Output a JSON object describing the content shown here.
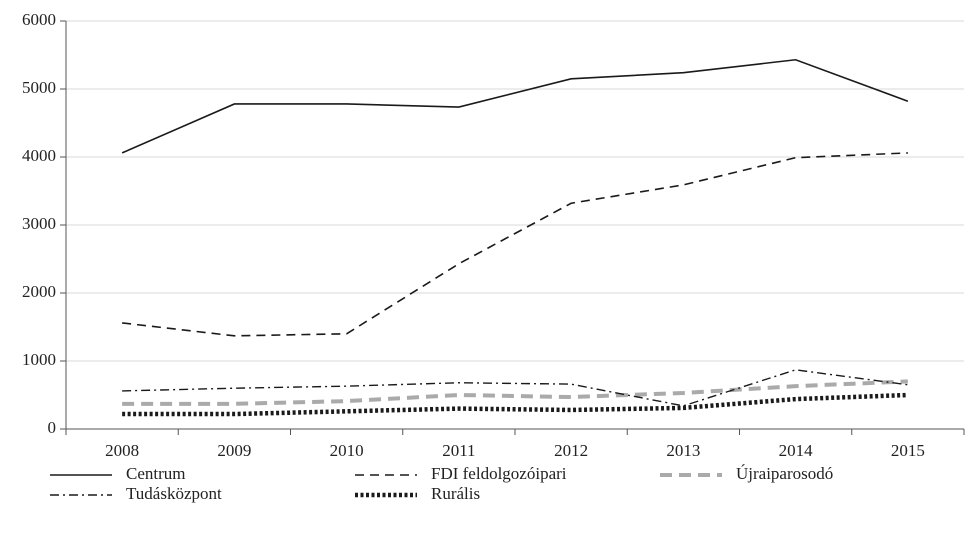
{
  "chart_data": {
    "type": "line",
    "categories": [
      "2008",
      "2009",
      "2010",
      "2011",
      "2012",
      "2013",
      "2014",
      "2015"
    ],
    "series": [
      {
        "name": "Centrum",
        "color": "#1a1a1a",
        "line_style": "solid",
        "values": [
          4060,
          4780,
          4780,
          4735,
          5150,
          5240,
          5430,
          4820
        ]
      },
      {
        "name": "FDI feldolgozóipari",
        "color": "#1a1a1a",
        "line_style": "dashed",
        "values": [
          1560,
          1370,
          1400,
          2430,
          3320,
          3590,
          3990,
          4060
        ]
      },
      {
        "name": "Újraiparosodó",
        "color": "#aaaaaa",
        "line_style": "thick-dashed",
        "values": [
          370,
          370,
          410,
          500,
          470,
          530,
          630,
          700
        ]
      },
      {
        "name": "Tudásközpont",
        "color": "#1a1a1a",
        "line_style": "dashdot",
        "values": [
          560,
          600,
          630,
          680,
          660,
          340,
          870,
          650
        ]
      },
      {
        "name": "Rurális",
        "color": "#1a1a1a",
        "line_style": "dotted",
        "values": [
          220,
          220,
          260,
          300,
          280,
          310,
          440,
          500
        ]
      }
    ],
    "ylim": [
      0,
      6000
    ],
    "yticks": [
      0,
      1000,
      2000,
      3000,
      4000,
      5000,
      6000
    ],
    "grid": true,
    "legend": "bottom"
  }
}
